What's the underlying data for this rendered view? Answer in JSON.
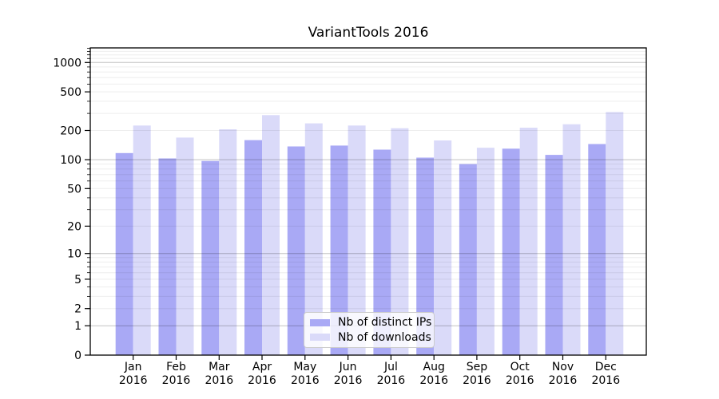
{
  "chart_data": {
    "type": "bar",
    "title": "VariantTools 2016",
    "categories": [
      "Jan",
      "Feb",
      "Mar",
      "Apr",
      "May",
      "Jun",
      "Jul",
      "Aug",
      "Sep",
      "Oct",
      "Nov",
      "Dec"
    ],
    "category_year": "2016",
    "series": [
      {
        "name": "Nb of distinct IPs",
        "color": "#a9a9f5",
        "values": [
          117,
          103,
          97,
          159,
          137,
          140,
          127,
          105,
          90,
          130,
          112,
          145
        ]
      },
      {
        "name": "Nb of downloads",
        "color": "#dadaf9",
        "values": [
          225,
          169,
          206,
          288,
          237,
          225,
          211,
          158,
          133,
          214,
          232,
          310
        ]
      }
    ],
    "xlabel": "",
    "ylabel": "",
    "yscale": "symlog (position ~ ln(1+y))",
    "yticks": [
      0,
      1,
      2,
      5,
      10,
      20,
      50,
      100,
      200,
      500,
      1000
    ],
    "ylim": [
      0,
      1413
    ],
    "grid": true,
    "legend_position": "lower center"
  },
  "colors": {
    "axis": "#000000",
    "major_grid": "#000000",
    "minor_grid": "#000000",
    "legend_border": "#cccccc"
  }
}
